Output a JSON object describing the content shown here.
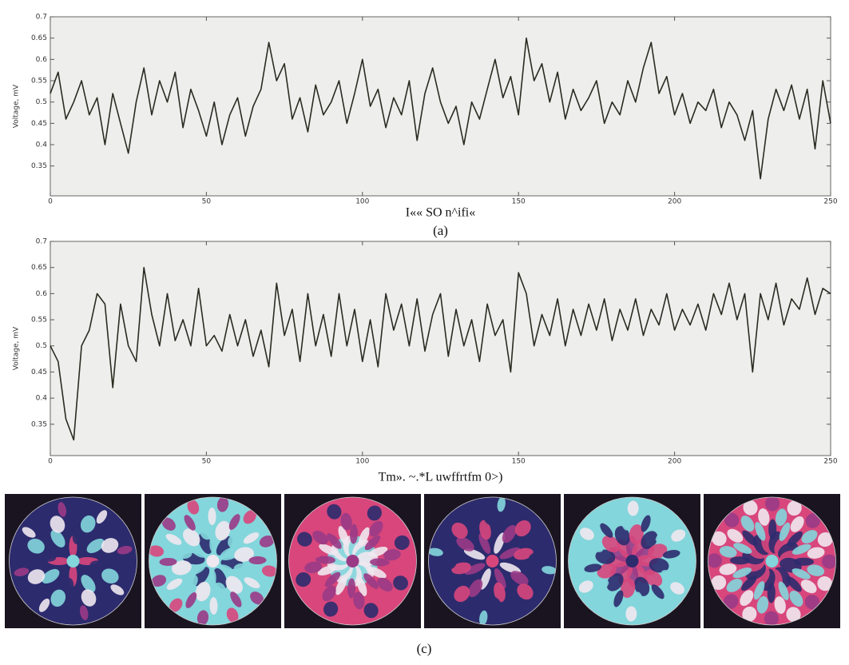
{
  "chart_data": [
    {
      "type": "line",
      "y_label": "Voltage, mV",
      "x_label": "I«« SO n^ifi«",
      "caption": "(a)",
      "xlim": [
        0,
        250
      ],
      "ylim": [
        0.28,
        0.7
      ],
      "xticks": [
        0,
        50,
        100,
        150,
        200,
        250
      ],
      "yticks": [
        0.35,
        0.4,
        0.45,
        0.5,
        0.55,
        0.6,
        0.65,
        0.7
      ],
      "x": [
        0,
        2.5,
        5,
        7.5,
        10,
        12.5,
        15,
        17.5,
        20,
        22.5,
        25,
        27.5,
        30,
        32.5,
        35,
        37.5,
        40,
        42.5,
        45,
        47.5,
        50,
        52.5,
        55,
        57.5,
        60,
        62.5,
        65,
        67.5,
        70,
        72.5,
        75,
        77.5,
        80,
        82.5,
        85,
        87.5,
        90,
        92.5,
        95,
        97.5,
        100,
        102.5,
        105,
        107.5,
        110,
        112.5,
        115,
        117.5,
        120,
        122.5,
        125,
        127.5,
        130,
        132.5,
        135,
        137.5,
        140,
        142.5,
        145,
        147.5,
        150,
        152.5,
        155,
        157.5,
        160,
        162.5,
        165,
        167.5,
        170,
        172.5,
        175,
        177.5,
        180,
        182.5,
        185,
        187.5,
        190,
        192.5,
        195,
        197.5,
        200,
        202.5,
        205,
        207.5,
        210,
        212.5,
        215,
        217.5,
        220,
        222.5,
        225,
        227.5,
        230,
        232.5,
        235,
        237.5,
        240,
        242.5,
        245,
        247.5,
        250
      ],
      "series": [
        {
          "color": "#2b2b22",
          "values": [
            0.52,
            0.57,
            0.46,
            0.5,
            0.55,
            0.47,
            0.51,
            0.4,
            0.52,
            0.45,
            0.38,
            0.5,
            0.58,
            0.47,
            0.55,
            0.5,
            0.57,
            0.44,
            0.53,
            0.48,
            0.42,
            0.5,
            0.4,
            0.47,
            0.51,
            0.42,
            0.49,
            0.53,
            0.64,
            0.55,
            0.59,
            0.46,
            0.51,
            0.43,
            0.54,
            0.47,
            0.5,
            0.55,
            0.45,
            0.52,
            0.6,
            0.49,
            0.53,
            0.44,
            0.51,
            0.47,
            0.55,
            0.41,
            0.52,
            0.58,
            0.5,
            0.45,
            0.49,
            0.4,
            0.5,
            0.46,
            0.53,
            0.6,
            0.51,
            0.56,
            0.47,
            0.65,
            0.55,
            0.59,
            0.5,
            0.57,
            0.46,
            0.53,
            0.48,
            0.51,
            0.55,
            0.45,
            0.5,
            0.47,
            0.55,
            0.5,
            0.58,
            0.64,
            0.52,
            0.56,
            0.47,
            0.52,
            0.45,
            0.5,
            0.48,
            0.53,
            0.44,
            0.5,
            0.47,
            0.41,
            0.48,
            0.32,
            0.46,
            0.53,
            0.48,
            0.54,
            0.46,
            0.53,
            0.39,
            0.55,
            0.45
          ]
        }
      ]
    },
    {
      "type": "line",
      "y_label": "Voltage, mV",
      "x_label": "Tm». ~.*L uwffrtfm 0>)",
      "xlim": [
        0,
        250
      ],
      "ylim": [
        0.29,
        0.7
      ],
      "xticks": [
        0,
        50,
        100,
        150,
        200,
        250
      ],
      "yticks": [
        0.35,
        0.4,
        0.45,
        0.5,
        0.55,
        0.6,
        0.65,
        0.7
      ],
      "x": [
        0,
        2.5,
        5,
        7.5,
        10,
        12.5,
        15,
        17.5,
        20,
        22.5,
        25,
        27.5,
        30,
        32.5,
        35,
        37.5,
        40,
        42.5,
        45,
        47.5,
        50,
        52.5,
        55,
        57.5,
        60,
        62.5,
        65,
        67.5,
        70,
        72.5,
        75,
        77.5,
        80,
        82.5,
        85,
        87.5,
        90,
        92.5,
        95,
        97.5,
        100,
        102.5,
        105,
        107.5,
        110,
        112.5,
        115,
        117.5,
        120,
        122.5,
        125,
        127.5,
        130,
        132.5,
        135,
        137.5,
        140,
        142.5,
        145,
        147.5,
        150,
        152.5,
        155,
        157.5,
        160,
        162.5,
        165,
        167.5,
        170,
        172.5,
        175,
        177.5,
        180,
        182.5,
        185,
        187.5,
        190,
        192.5,
        195,
        197.5,
        200,
        202.5,
        205,
        207.5,
        210,
        212.5,
        215,
        217.5,
        220,
        222.5,
        225,
        227.5,
        230,
        232.5,
        235,
        237.5,
        240,
        242.5,
        245,
        247.5,
        250
      ],
      "series": [
        {
          "color": "#2b2b22",
          "values": [
            0.5,
            0.47,
            0.36,
            0.32,
            0.5,
            0.53,
            0.6,
            0.58,
            0.42,
            0.58,
            0.5,
            0.47,
            0.65,
            0.56,
            0.5,
            0.6,
            0.51,
            0.55,
            0.5,
            0.61,
            0.5,
            0.52,
            0.49,
            0.56,
            0.5,
            0.55,
            0.48,
            0.53,
            0.46,
            0.62,
            0.52,
            0.57,
            0.47,
            0.6,
            0.5,
            0.56,
            0.48,
            0.6,
            0.5,
            0.57,
            0.47,
            0.55,
            0.46,
            0.6,
            0.53,
            0.58,
            0.5,
            0.59,
            0.49,
            0.56,
            0.6,
            0.48,
            0.57,
            0.5,
            0.55,
            0.47,
            0.58,
            0.52,
            0.55,
            0.45,
            0.64,
            0.6,
            0.5,
            0.56,
            0.52,
            0.59,
            0.5,
            0.57,
            0.52,
            0.58,
            0.53,
            0.59,
            0.51,
            0.57,
            0.53,
            0.59,
            0.52,
            0.57,
            0.54,
            0.6,
            0.53,
            0.57,
            0.54,
            0.58,
            0.53,
            0.6,
            0.56,
            0.62,
            0.55,
            0.6,
            0.45,
            0.6,
            0.55,
            0.62,
            0.54,
            0.59,
            0.57,
            0.63,
            0.56,
            0.61,
            0.6
          ]
        }
      ]
    }
  ],
  "panel_caption": "(c)"
}
